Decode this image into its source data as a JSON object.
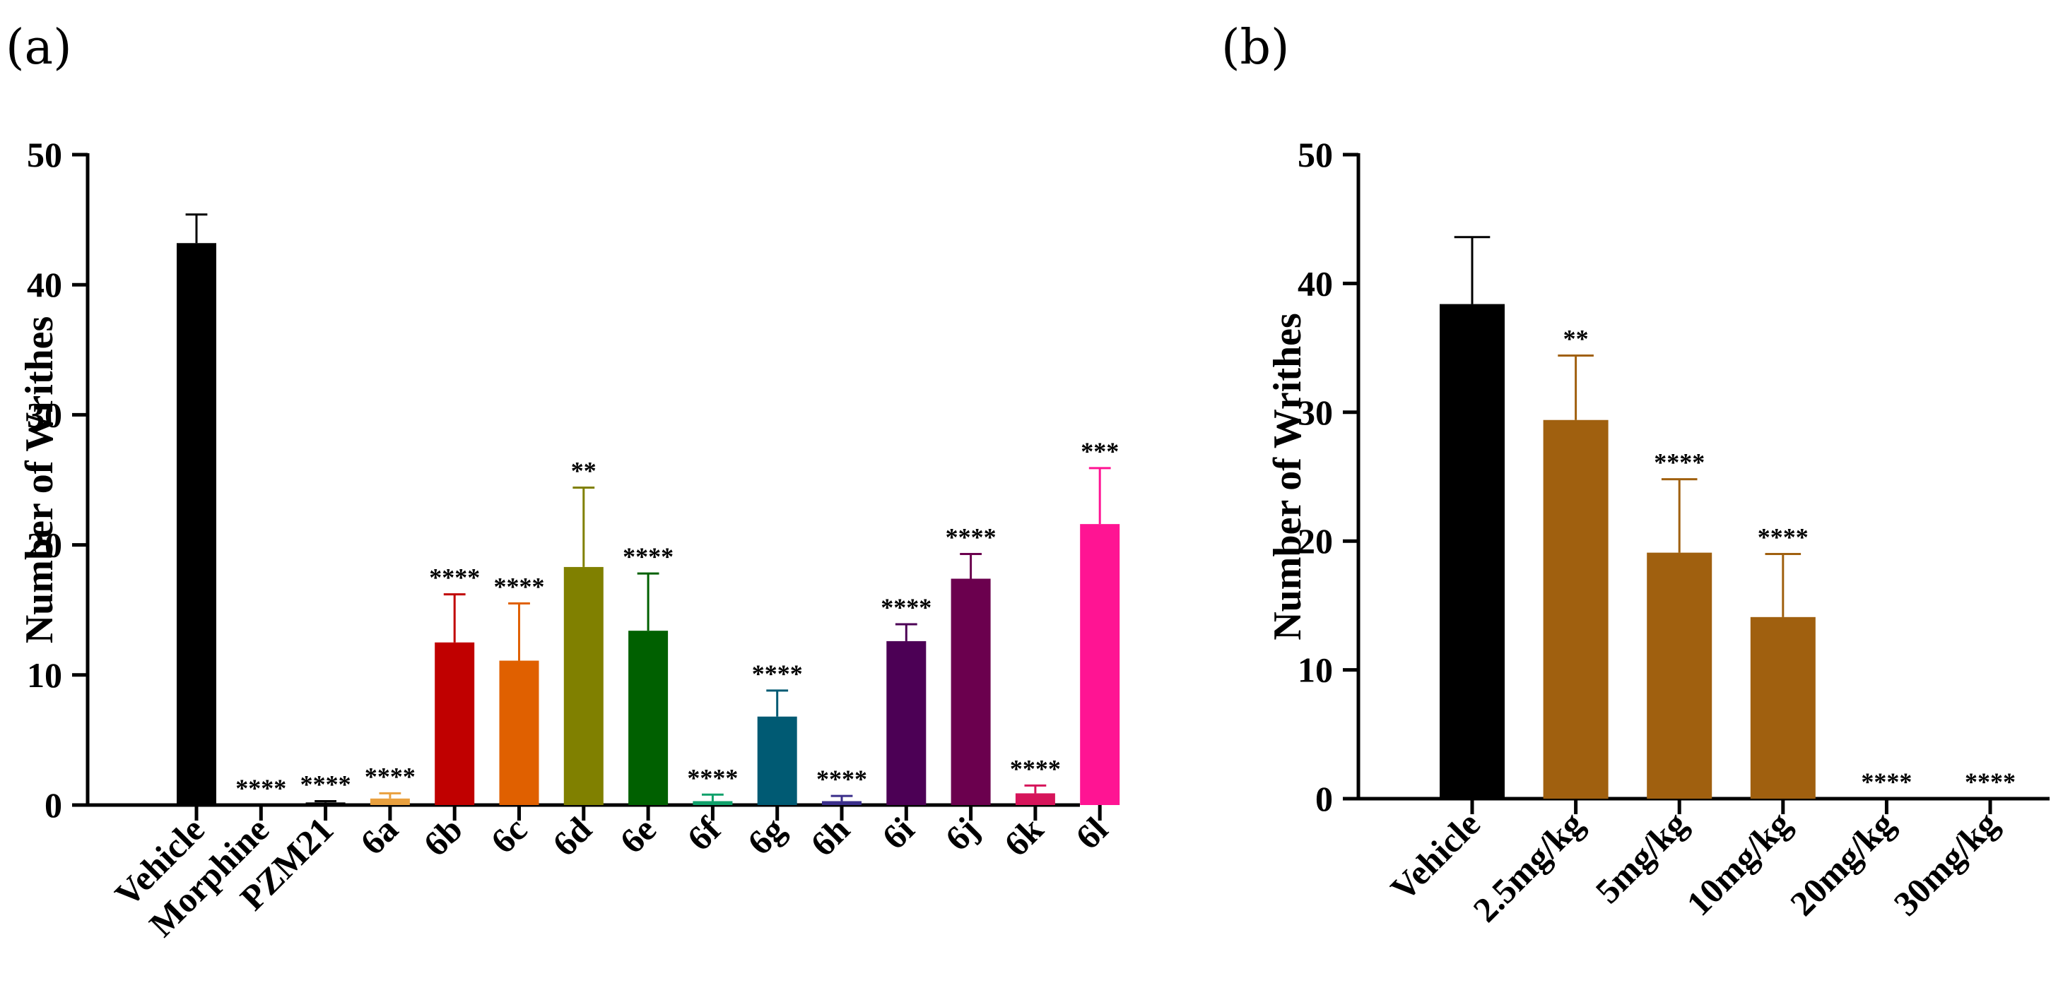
{
  "figure": {
    "panels": [
      "(a)",
      "(b)"
    ]
  },
  "chart_data": [
    {
      "type": "bar",
      "panel": "(a)",
      "title": "",
      "xlabel": "",
      "ylabel": "Number of Writhes",
      "ylim": [
        0,
        50
      ],
      "yticks": [
        "0",
        "10",
        "20",
        "30",
        "40",
        "50"
      ],
      "grid": false,
      "categories": [
        "Vehicle",
        "Morphine",
        "PZM21",
        "6a",
        "6b",
        "6c",
        "6d",
        "6e",
        "6f",
        "6g",
        "6h",
        "6i",
        "6j",
        "6k",
        "6l"
      ],
      "values": [
        43.2,
        0,
        0.2,
        0.5,
        12.5,
        11.1,
        18.3,
        13.4,
        0.3,
        6.8,
        0.3,
        12.6,
        17.4,
        0.9,
        21.6
      ],
      "errors": [
        2.2,
        0,
        0.1,
        0.4,
        3.7,
        4.4,
        6.1,
        4.4,
        0.5,
        2.0,
        0.4,
        1.3,
        1.9,
        0.6,
        4.3
      ],
      "significance": [
        "",
        "****",
        "****",
        "****",
        "****",
        "****",
        "**",
        "****",
        "****",
        "****",
        "****",
        "****",
        "****",
        "****",
        "***"
      ],
      "colors": [
        "#000000",
        "#000000",
        "#000000",
        "#E9A03E",
        "#C00000",
        "#E06000",
        "#808000",
        "#006000",
        "#0FA06A",
        "#005A73",
        "#3A2E8A",
        "#4C0055",
        "#6B004E",
        "#D6145A",
        "#FF1493"
      ]
    },
    {
      "type": "bar",
      "panel": "(b)",
      "title": "",
      "xlabel": "",
      "ylabel": "Number of Writhes",
      "ylim": [
        0,
        50
      ],
      "yticks": [
        "0",
        "10",
        "20",
        "30",
        "40",
        "50"
      ],
      "grid": false,
      "categories": [
        "Vehicle",
        "2.5mg/kg",
        "5mg/kg",
        "10mg/kg",
        "20mg/kg",
        "30mg/kg"
      ],
      "values": [
        38.4,
        29.4,
        19.1,
        14.1,
        0,
        0
      ],
      "errors": [
        5.2,
        5.0,
        5.7,
        4.9,
        0,
        0
      ],
      "significance": [
        "",
        "**",
        "****",
        "****",
        "****",
        "****"
      ],
      "colors": [
        "#000000",
        "#A0600F",
        "#A0600F",
        "#A0600F",
        "#A0600F",
        "#A0600F"
      ]
    }
  ]
}
